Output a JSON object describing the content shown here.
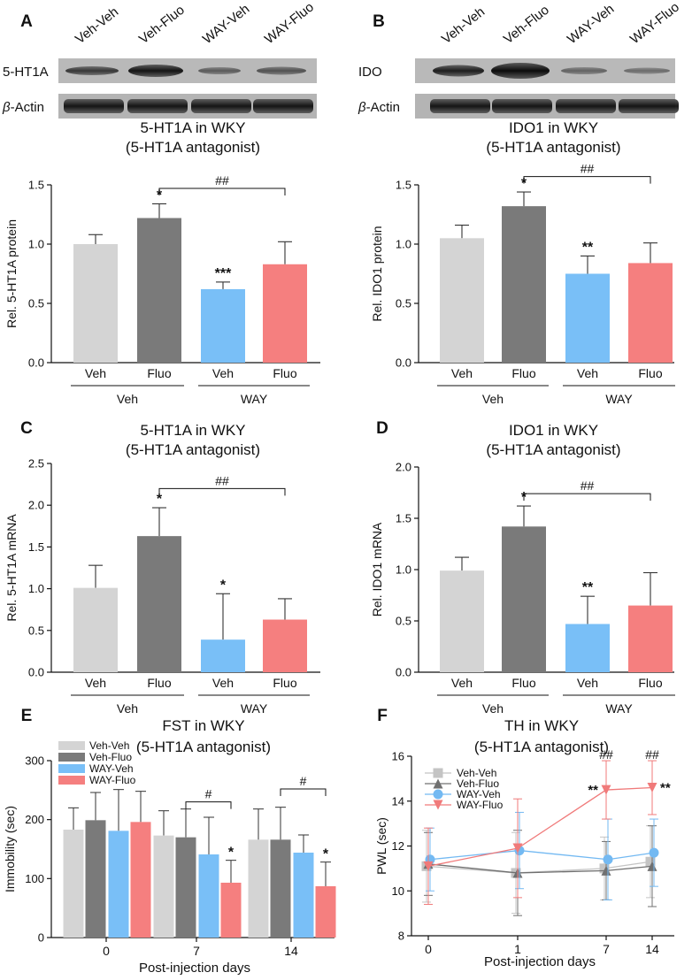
{
  "colors": {
    "veh_veh": "#d4d4d4",
    "veh_fluo": "#7a7a7a",
    "way_veh": "#79bff7",
    "way_fluo": "#f57f7f",
    "line_veh_veh": "#c4c4c4",
    "line_veh_fluo": "#707070",
    "line_way_veh": "#73b9f2",
    "line_way_fluo": "#f07a7a"
  },
  "blots": {
    "A": {
      "panel_label": "A",
      "lanes": [
        "Veh-Veh",
        "Veh-Fluo",
        "WAY-Veh",
        "WAY-Fluo"
      ],
      "row1": "5-HT1A",
      "row2_greek": "β",
      "row2_rest": "-Actin"
    },
    "B": {
      "panel_label": "B",
      "lanes": [
        "Veh-Veh",
        "Veh-Fluo",
        "WAY-Veh",
        "WAY-Fluo"
      ],
      "row1": "IDO",
      "row2_greek": "β",
      "row2_rest": "-Actin"
    }
  },
  "chart_data": [
    {
      "id": "A",
      "type": "bar",
      "title": "5-HT1A in WKY",
      "subtitle": "(5-HT1A antagonist)",
      "ylabel": "Rel. 5-HT1A protein",
      "ylim": [
        0,
        1.5
      ],
      "yticks": [
        "0.0",
        "0.5",
        "1.0",
        "1.5"
      ],
      "ytick_values": [
        0,
        0.5,
        1.0,
        1.5
      ],
      "categories": [
        "Veh",
        "Fluo",
        "Veh",
        "Fluo"
      ],
      "values": [
        1.0,
        1.22,
        0.62,
        0.83
      ],
      "errors": [
        0.08,
        0.12,
        0.06,
        0.19
      ],
      "sig": [
        "",
        "*",
        "***",
        ""
      ],
      "group_labels": [
        "Veh",
        "WAY"
      ],
      "bracket": {
        "from": 1,
        "to": 3,
        "label": "##",
        "y": 1.47
      }
    },
    {
      "id": "B",
      "type": "bar",
      "title": "IDO1 in WKY",
      "subtitle": "(5-HT1A antagonist)",
      "ylabel": "Rel. IDO1 protein",
      "ylim": [
        0,
        1.5
      ],
      "yticks": [
        "0.0",
        "0.5",
        "1.0",
        "1.5"
      ],
      "ytick_values": [
        0,
        0.5,
        1.0,
        1.5
      ],
      "categories": [
        "Veh",
        "Fluo",
        "Veh",
        "Fluo"
      ],
      "values": [
        1.05,
        1.32,
        0.75,
        0.84
      ],
      "errors": [
        0.11,
        0.12,
        0.15,
        0.17
      ],
      "sig": [
        "",
        "*",
        "**",
        ""
      ],
      "group_labels": [
        "Veh",
        "WAY"
      ],
      "bracket": {
        "from": 1,
        "to": 3,
        "label": "##",
        "y": 1.57
      }
    },
    {
      "id": "C",
      "type": "bar",
      "title": "5-HT1A in WKY",
      "subtitle": "(5-HT1A antagonist)",
      "ylabel": "Rel. 5-HT1A mRNA",
      "ylim": [
        0,
        2.5
      ],
      "yticks": [
        "0.0",
        "0.5",
        "1.0",
        "1.5",
        "2.0",
        "2.5"
      ],
      "ytick_values": [
        0,
        0.5,
        1.0,
        1.5,
        2.0,
        2.5
      ],
      "categories": [
        "Veh",
        "Fluo",
        "Veh",
        "Fluo"
      ],
      "values": [
        1.01,
        1.63,
        0.39,
        0.63
      ],
      "errors": [
        0.27,
        0.34,
        0.55,
        0.25
      ],
      "sig": [
        "",
        "*",
        "*",
        ""
      ],
      "group_labels": [
        "Veh",
        "WAY"
      ],
      "bracket": {
        "from": 1,
        "to": 3,
        "label": "##",
        "y": 2.2
      }
    },
    {
      "id": "D",
      "type": "bar",
      "title": "IDO1 in WKY",
      "subtitle": "(5-HT1A antagonist)",
      "ylabel": "Rel. IDO1 mRNA",
      "ylim": [
        0,
        2.0
      ],
      "yticks": [
        "0.0",
        "0.5",
        "1.0",
        "1.5",
        "2.0"
      ],
      "ytick_values": [
        0,
        0.5,
        1.0,
        1.5,
        2.0
      ],
      "categories": [
        "Veh",
        "Fluo",
        "Veh",
        "Fluo"
      ],
      "values": [
        0.99,
        1.42,
        0.47,
        0.65
      ],
      "errors": [
        0.13,
        0.2,
        0.27,
        0.32
      ],
      "sig": [
        "",
        "*",
        "**",
        ""
      ],
      "group_labels": [
        "Veh",
        "WAY"
      ],
      "bracket": {
        "from": 1,
        "to": 3,
        "label": "##",
        "y": 1.74
      }
    },
    {
      "id": "E",
      "type": "bar",
      "title": "FST in WKY",
      "subtitle": "(5-HT1A antagonist)",
      "ylabel": "Immobility (sec)",
      "xlabel": "Post-injection days",
      "ylim": [
        0,
        300
      ],
      "yticks": [
        "0",
        "100",
        "200",
        "300"
      ],
      "ytick_values": [
        0,
        100,
        200,
        300
      ],
      "categories": [
        "0",
        "7",
        "14"
      ],
      "series": [
        {
          "name": "Veh-Veh",
          "values": [
            183,
            173,
            166
          ],
          "errors": [
            37,
            42,
            52
          ],
          "sig": [
            "",
            "",
            ""
          ]
        },
        {
          "name": "Veh-Fluo",
          "values": [
            199,
            170,
            166
          ],
          "errors": [
            47,
            48,
            55
          ],
          "sig": [
            "",
            "",
            ""
          ]
        },
        {
          "name": "WAY-Veh",
          "values": [
            181,
            141,
            144
          ],
          "errors": [
            70,
            63,
            30
          ],
          "sig": [
            "",
            "",
            ""
          ]
        },
        {
          "name": "WAY-Fluo",
          "values": [
            196,
            93,
            87
          ],
          "errors": [
            52,
            38,
            41
          ],
          "sig": [
            "",
            "*",
            "*"
          ]
        }
      ],
      "brackets": [
        {
          "category": 1,
          "from_series": 1,
          "to_series": 3,
          "label": "#",
          "y": 230
        },
        {
          "category": 2,
          "from_series": 1,
          "to_series": 3,
          "label": "#",
          "y": 252
        }
      ]
    },
    {
      "id": "F",
      "type": "line",
      "title": "TH in WKY",
      "subtitle": "(5-HT1A antagonist)",
      "ylabel": "PWL (sec)",
      "xlabel": "Post-injection days",
      "ylim": [
        8,
        16
      ],
      "yticks": [
        "8",
        "10",
        "12",
        "14",
        "16"
      ],
      "ytick_values": [
        8,
        10,
        12,
        14,
        16
      ],
      "categories": [
        "0",
        "1",
        "7",
        "14"
      ],
      "series": [
        {
          "name": "Veh-Veh",
          "marker": "square",
          "values": [
            11.1,
            10.8,
            11.0,
            11.3
          ],
          "errors": [
            1.6,
            1.8,
            1.4,
            1.6
          ]
        },
        {
          "name": "Veh-Fluo",
          "marker": "triangle-up",
          "values": [
            11.2,
            10.8,
            10.9,
            11.1
          ],
          "errors": [
            1.4,
            1.9,
            1.3,
            1.8
          ]
        },
        {
          "name": "WAY-Veh",
          "marker": "circle",
          "values": [
            11.4,
            11.8,
            11.4,
            11.7
          ],
          "errors": [
            1.4,
            1.7,
            1.8,
            1.5
          ]
        },
        {
          "name": "WAY-Fluo",
          "marker": "triangle-down",
          "values": [
            11.1,
            11.9,
            14.5,
            14.6
          ],
          "errors": [
            1.7,
            2.2,
            1.3,
            1.2
          ]
        }
      ],
      "annotations": [
        {
          "category": 2,
          "hash": "##",
          "stars": "**"
        },
        {
          "category": 3,
          "hash": "##",
          "stars": "**"
        }
      ]
    }
  ]
}
